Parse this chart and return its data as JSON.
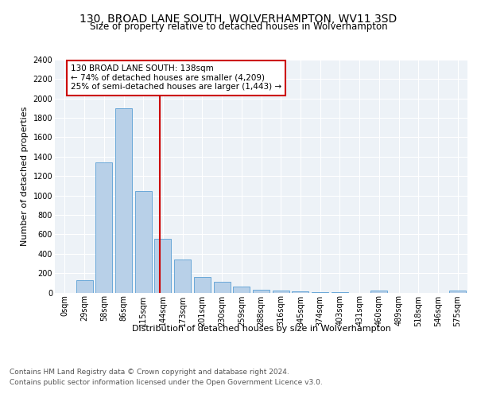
{
  "title": "130, BROAD LANE SOUTH, WOLVERHAMPTON, WV11 3SD",
  "subtitle": "Size of property relative to detached houses in Wolverhampton",
  "xlabel": "Distribution of detached houses by size in Wolverhampton",
  "ylabel": "Number of detached properties",
  "categories": [
    "0sqm",
    "29sqm",
    "58sqm",
    "86sqm",
    "115sqm",
    "144sqm",
    "173sqm",
    "201sqm",
    "230sqm",
    "259sqm",
    "288sqm",
    "316sqm",
    "345sqm",
    "374sqm",
    "403sqm",
    "431sqm",
    "460sqm",
    "489sqm",
    "518sqm",
    "546sqm",
    "575sqm"
  ],
  "values": [
    0,
    130,
    1340,
    1900,
    1050,
    550,
    340,
    160,
    110,
    60,
    30,
    20,
    10,
    5,
    3,
    0,
    20,
    0,
    0,
    0,
    20
  ],
  "bar_color": "#b8d0e8",
  "bar_edge_color": "#5a9fd4",
  "vline_x": 4.85,
  "vline_color": "#cc0000",
  "annotation_text": "130 BROAD LANE SOUTH: 138sqm\n← 74% of detached houses are smaller (4,209)\n25% of semi-detached houses are larger (1,443) →",
  "annotation_box_color": "#ffffff",
  "annotation_box_edge": "#cc0000",
  "ylim": [
    0,
    2400
  ],
  "yticks": [
    0,
    200,
    400,
    600,
    800,
    1000,
    1200,
    1400,
    1600,
    1800,
    2000,
    2200,
    2400
  ],
  "footer_line1": "Contains HM Land Registry data © Crown copyright and database right 2024.",
  "footer_line2": "Contains public sector information licensed under the Open Government Licence v3.0.",
  "fig_bg_color": "#ffffff",
  "plot_bg_color": "#edf2f7",
  "grid_color": "#ffffff",
  "title_fontsize": 10,
  "subtitle_fontsize": 8.5,
  "axis_label_fontsize": 8,
  "tick_fontsize": 7,
  "footer_fontsize": 6.5,
  "annotation_fontsize": 7.5
}
